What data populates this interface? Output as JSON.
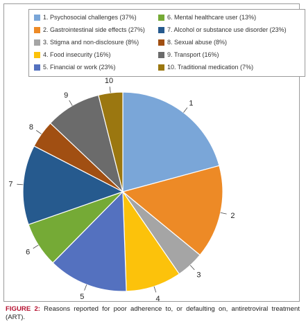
{
  "chart_data": {
    "type": "pie",
    "title": "",
    "slices": [
      {
        "id": "1",
        "label": "1. Psychosocial challenges (37%)",
        "value": 37,
        "color": "#7aa6d8"
      },
      {
        "id": "2",
        "label": "2. Gastrointestinal side effects (27%)",
        "value": 27,
        "color": "#ed8a26"
      },
      {
        "id": "3",
        "label": "3. Stigma and non-disclosure (8%)",
        "value": 8,
        "color": "#a5a5a5"
      },
      {
        "id": "4",
        "label": "4. Food insecurity (16%)",
        "value": 16,
        "color": "#fcc20b"
      },
      {
        "id": "5",
        "label": "5. Financial or work (23%)",
        "value": 23,
        "color": "#5471bf"
      },
      {
        "id": "6",
        "label": "6. Mental healthcare user (13%)",
        "value": 13,
        "color": "#75aa36"
      },
      {
        "id": "7",
        "label": "7. Alcohol or substance use disorder (23%)",
        "value": 23,
        "color": "#265a8e"
      },
      {
        "id": "8",
        "label": "8. Sexual abuse (8%)",
        "value": 8,
        "color": "#a14f12"
      },
      {
        "id": "9",
        "label": "9. Transport (16%)",
        "value": 16,
        "color": "#6b6b6b"
      },
      {
        "id": "10",
        "label": "10. Traditional medication (7%)",
        "value": 7,
        "color": "#9b7710"
      }
    ],
    "legend_position": "top"
  },
  "caption": {
    "label": "FIGURE 2:",
    "text": " Reasons reported for poor adherence to, or defaulting on, antiretroviral treatment (ART)."
  }
}
